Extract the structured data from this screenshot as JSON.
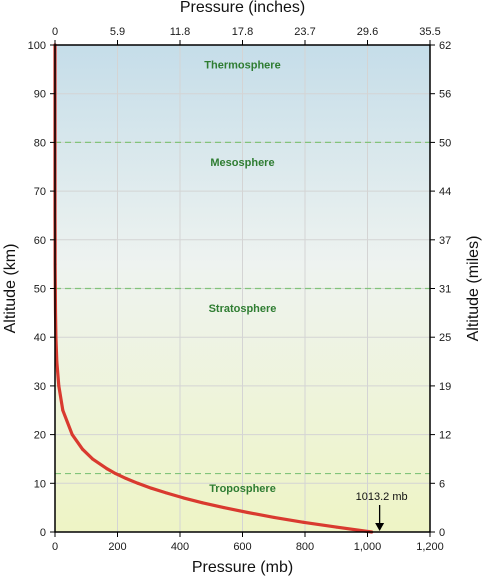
{
  "chart_data": {
    "type": "line",
    "xlabel": "Pressure (mb)",
    "x2label": "Pressure (inches)",
    "ylabel": "Altitude (km)",
    "y2label": "Altitude (miles)",
    "xlim": [
      0,
      1200
    ],
    "ylim": [
      0,
      100
    ],
    "x_ticks": [
      0,
      200,
      400,
      600,
      800,
      1000,
      1200
    ],
    "x_tick_labels": [
      "0",
      "200",
      "400",
      "600",
      "800",
      "1,000",
      "1,200"
    ],
    "x2_tick_labels": [
      "0",
      "5.9",
      "11.8",
      "17.8",
      "23.7",
      "29.6",
      "35.5"
    ],
    "y_ticks": [
      0,
      10,
      20,
      30,
      40,
      50,
      60,
      70,
      80,
      90,
      100
    ],
    "y_tick_labels": [
      "0",
      "10",
      "20",
      "30",
      "40",
      "50",
      "60",
      "70",
      "80",
      "90",
      "100"
    ],
    "y2_tick_labels": [
      "0",
      "6",
      "12",
      "19",
      "25",
      "31",
      "37",
      "44",
      "50",
      "56",
      "62"
    ],
    "grid": true,
    "boundaries": [
      12,
      50,
      80
    ],
    "layers": [
      {
        "name": "Thermosphere",
        "altitude": 96
      },
      {
        "name": "Mesosphere",
        "altitude": 76
      },
      {
        "name": "Stratosphere",
        "altitude": 46
      },
      {
        "name": "Troposphere",
        "altitude": 9
      }
    ],
    "series": [
      {
        "color": "#d93a2f",
        "points": [
          [
            1013.2,
            0
          ],
          [
            900,
            1
          ],
          [
            795,
            2
          ],
          [
            701,
            3
          ],
          [
            617,
            4
          ],
          [
            540,
            5
          ],
          [
            472,
            6
          ],
          [
            411,
            7
          ],
          [
            357,
            8
          ],
          [
            308,
            9
          ],
          [
            265,
            10
          ],
          [
            227,
            11
          ],
          [
            194,
            12
          ],
          [
            166,
            13
          ],
          [
            120,
            15
          ],
          [
            88,
            17
          ],
          [
            55,
            20
          ],
          [
            25,
            25
          ],
          [
            12,
            30
          ],
          [
            5.7,
            35
          ],
          [
            2.9,
            40
          ],
          [
            1.5,
            45
          ],
          [
            0.8,
            50
          ],
          [
            0.4,
            55
          ],
          [
            0.2,
            60
          ],
          [
            0.1,
            65
          ],
          [
            0.05,
            70
          ],
          [
            0.01,
            80
          ],
          [
            0,
            90
          ],
          [
            0,
            100
          ]
        ]
      }
    ],
    "annotation": {
      "label": "1013.2 mb",
      "x": 1013.2,
      "y": 0
    }
  }
}
